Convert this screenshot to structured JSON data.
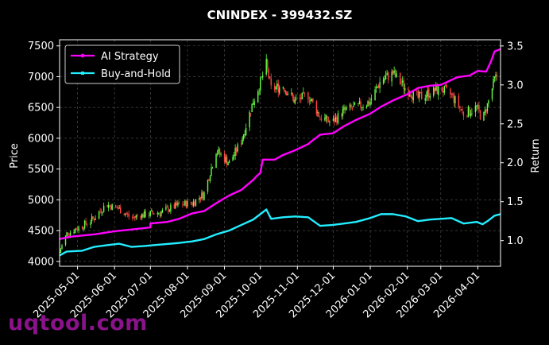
{
  "chart_data": {
    "type": "candlestick+line",
    "title": "CNINDEX - 399432.SZ",
    "ylabel_left": "Price",
    "ylabel_right": "Return",
    "ylim_left": [
      3920,
      7600
    ],
    "ylim_right": [
      0.67,
      3.58
    ],
    "yticks_left": [
      4000,
      4500,
      5000,
      5500,
      6000,
      6500,
      7000,
      7500
    ],
    "yticks_right": [
      1.0,
      1.5,
      2.0,
      2.5,
      3.0,
      3.5
    ],
    "yticks_right_labels": [
      "1.0",
      "1.5",
      "2.0",
      "2.5",
      "3.0",
      "3.5"
    ],
    "xlim": [
      "2025-04-16",
      "2026-04-20"
    ],
    "xticks": [
      "2025-05-01",
      "2025-06-01",
      "2025-07-01",
      "2025-08-01",
      "2025-09-01",
      "2025-10-01",
      "2025-11-01",
      "2025-12-01",
      "2026-01-01",
      "2026-02-01",
      "2026-03-01",
      "2026-04-01"
    ],
    "grid": true,
    "legend": {
      "placement": "top-left",
      "entries": [
        "AI Strategy",
        "Buy-and-Hold"
      ]
    },
    "colors": {
      "up": "#66ff44",
      "down": "#ff4444",
      "ai": "#ff00ff",
      "bh": "#22eeff",
      "background": "#000000"
    },
    "price_anchors": [
      [
        "2025-04-16",
        4150
      ],
      [
        "2025-04-22",
        4450
      ],
      [
        "2025-05-05",
        4580
      ],
      [
        "2025-05-15",
        4700
      ],
      [
        "2025-05-25",
        4930
      ],
      [
        "2025-06-05",
        4850
      ],
      [
        "2025-06-15",
        4700
      ],
      [
        "2025-06-25",
        4760
      ],
      [
        "2025-07-10",
        4800
      ],
      [
        "2025-07-25",
        4920
      ],
      [
        "2025-08-05",
        4950
      ],
      [
        "2025-08-15",
        5100
      ],
      [
        "2025-08-25",
        5800
      ],
      [
        "2025-09-05",
        5600
      ],
      [
        "2025-09-15",
        5950
      ],
      [
        "2025-09-25",
        6600
      ],
      [
        "2025-10-01",
        6900
      ],
      [
        "2025-10-06",
        7200
      ],
      [
        "2025-10-10",
        6800
      ],
      [
        "2025-10-20",
        6850
      ],
      [
        "2025-10-30",
        6600
      ],
      [
        "2025-11-10",
        6700
      ],
      [
        "2025-11-20",
        6350
      ],
      [
        "2025-11-30",
        6250
      ],
      [
        "2025-12-10",
        6450
      ],
      [
        "2025-12-20",
        6500
      ],
      [
        "2026-01-01",
        6600
      ],
      [
        "2026-01-10",
        6950
      ],
      [
        "2026-01-20",
        7050
      ],
      [
        "2026-01-31",
        6800
      ],
      [
        "2026-02-10",
        6650
      ],
      [
        "2026-02-20",
        6750
      ],
      [
        "2026-03-01",
        6800
      ],
      [
        "2026-03-10",
        6700
      ],
      [
        "2026-03-20",
        6400
      ],
      [
        "2026-03-31",
        6500
      ],
      [
        "2026-04-05",
        6300
      ],
      [
        "2026-04-10",
        6600
      ],
      [
        "2026-04-15",
        6950
      ],
      [
        "2026-04-20",
        7100
      ]
    ],
    "series": [
      {
        "name": "AI Strategy",
        "axis": "right",
        "points": [
          [
            "2025-04-16",
            1.02
          ],
          [
            "2025-04-25",
            1.05
          ],
          [
            "2025-05-15",
            1.08
          ],
          [
            "2025-06-01",
            1.12
          ],
          [
            "2025-06-20",
            1.15
          ],
          [
            "2025-07-01",
            1.17
          ],
          [
            "2025-07-01",
            1.22
          ],
          [
            "2025-07-15",
            1.24
          ],
          [
            "2025-07-25",
            1.28
          ],
          [
            "2025-08-05",
            1.35
          ],
          [
            "2025-08-15",
            1.38
          ],
          [
            "2025-08-25",
            1.48
          ],
          [
            "2025-09-05",
            1.58
          ],
          [
            "2025-09-15",
            1.65
          ],
          [
            "2025-09-25",
            1.78
          ],
          [
            "2025-09-28",
            1.83
          ],
          [
            "2025-10-01",
            1.87
          ],
          [
            "2025-10-03",
            2.04
          ],
          [
            "2025-10-13",
            2.04
          ],
          [
            "2025-10-20",
            2.1
          ],
          [
            "2025-10-30",
            2.16
          ],
          [
            "2025-11-10",
            2.24
          ],
          [
            "2025-11-20",
            2.36
          ],
          [
            "2025-12-01",
            2.38
          ],
          [
            "2025-12-10",
            2.47
          ],
          [
            "2025-12-20",
            2.55
          ],
          [
            "2026-01-01",
            2.63
          ],
          [
            "2026-01-10",
            2.72
          ],
          [
            "2026-01-20",
            2.8
          ],
          [
            "2026-02-01",
            2.88
          ],
          [
            "2026-02-10",
            2.96
          ],
          [
            "2026-02-20",
            2.99
          ],
          [
            "2026-03-01",
            3.0
          ],
          [
            "2026-03-08",
            3.05
          ],
          [
            "2026-03-15",
            3.1
          ],
          [
            "2026-03-25",
            3.12
          ],
          [
            "2026-04-01",
            3.18
          ],
          [
            "2026-04-08",
            3.17
          ],
          [
            "2026-04-12",
            3.3
          ],
          [
            "2026-04-15",
            3.43
          ],
          [
            "2026-04-20",
            3.46
          ]
        ]
      },
      {
        "name": "Buy-and-Hold",
        "axis": "right",
        "points": [
          [
            "2025-04-16",
            0.81
          ],
          [
            "2025-04-22",
            0.86
          ],
          [
            "2025-05-05",
            0.87
          ],
          [
            "2025-05-15",
            0.92
          ],
          [
            "2025-05-25",
            0.94
          ],
          [
            "2025-06-05",
            0.96
          ],
          [
            "2025-06-15",
            0.92
          ],
          [
            "2025-06-25",
            0.93
          ],
          [
            "2025-07-10",
            0.95
          ],
          [
            "2025-07-25",
            0.97
          ],
          [
            "2025-08-05",
            0.99
          ],
          [
            "2025-08-15",
            1.02
          ],
          [
            "2025-08-25",
            1.08
          ],
          [
            "2025-09-05",
            1.13
          ],
          [
            "2025-09-15",
            1.2
          ],
          [
            "2025-09-25",
            1.27
          ],
          [
            "2025-10-01",
            1.34
          ],
          [
            "2025-10-06",
            1.4
          ],
          [
            "2025-10-10",
            1.28
          ],
          [
            "2025-10-20",
            1.3
          ],
          [
            "2025-10-30",
            1.31
          ],
          [
            "2025-11-10",
            1.3
          ],
          [
            "2025-11-20",
            1.19
          ],
          [
            "2025-11-30",
            1.2
          ],
          [
            "2025-12-10",
            1.22
          ],
          [
            "2025-12-20",
            1.24
          ],
          [
            "2026-01-01",
            1.29
          ],
          [
            "2026-01-10",
            1.34
          ],
          [
            "2026-01-20",
            1.34
          ],
          [
            "2026-01-31",
            1.31
          ],
          [
            "2026-02-10",
            1.25
          ],
          [
            "2026-02-20",
            1.27
          ],
          [
            "2026-03-01",
            1.28
          ],
          [
            "2026-03-10",
            1.29
          ],
          [
            "2026-03-20",
            1.22
          ],
          [
            "2026-03-31",
            1.24
          ],
          [
            "2026-04-05",
            1.21
          ],
          [
            "2026-04-10",
            1.26
          ],
          [
            "2026-04-15",
            1.32
          ],
          [
            "2026-04-20",
            1.34
          ]
        ]
      }
    ]
  },
  "watermark": "uqtool.com"
}
